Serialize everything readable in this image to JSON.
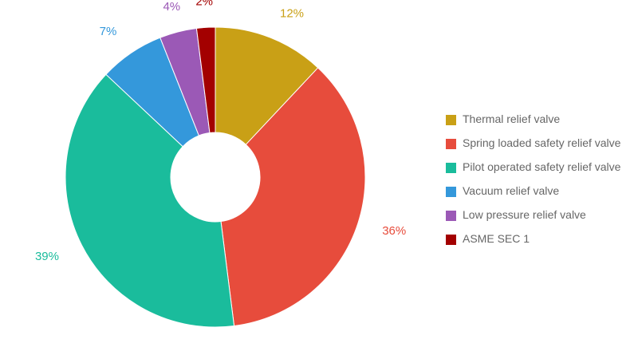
{
  "chart_data": {
    "type": "pie",
    "variant": "donut",
    "title": "",
    "categories": [
      "Thermal relief valve",
      "Spring loaded safety relief valve",
      "Pilot operated safety relief valve",
      "Vacuum relief valve",
      "Low pressure relief valve",
      "ASME SEC 1"
    ],
    "values": [
      12,
      36,
      39,
      7,
      4,
      2
    ],
    "labels": [
      "12%",
      "36%",
      "39%",
      "7%",
      "4%",
      "2%"
    ],
    "unit": "%",
    "colors": [
      "#c9a016",
      "#e74c3c",
      "#1abc9c",
      "#3498db",
      "#9b59b6",
      "#a30000"
    ],
    "legend_position": "right"
  }
}
